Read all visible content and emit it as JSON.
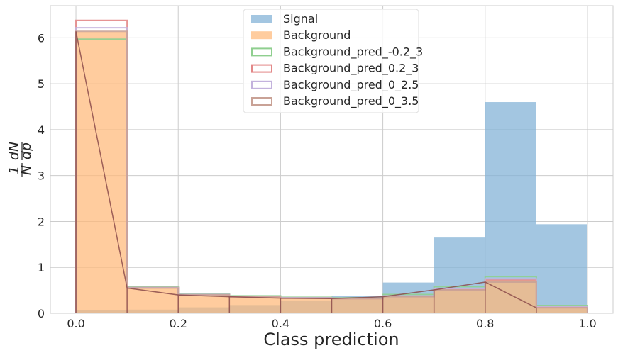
{
  "chart_data": {
    "type": "bar",
    "title": "",
    "xlabel": "Class prediction",
    "ylabel": "1 dN / N dp",
    "ylabel_parts": {
      "one": "1",
      "N": "N",
      "dN": "dN",
      "dp": "dp"
    },
    "xlim": [
      -0.05,
      1.05
    ],
    "ylim": [
      0,
      6.7
    ],
    "xticks": [
      "0.0",
      "0.2",
      "0.4",
      "0.6",
      "0.8",
      "1.0"
    ],
    "xtick_values": [
      0.0,
      0.2,
      0.4,
      0.6,
      0.8,
      1.0
    ],
    "yticks": [
      "0",
      "1",
      "2",
      "3",
      "4",
      "5",
      "6"
    ],
    "ytick_values": [
      0,
      1,
      2,
      3,
      4,
      5,
      6
    ],
    "grid": true,
    "legend_position": "top-center",
    "bin_edges": [
      0.0,
      0.1,
      0.2,
      0.3,
      0.4,
      0.5,
      0.6,
      0.7,
      0.8,
      0.9,
      1.0
    ],
    "series": [
      {
        "name": "Signal",
        "style": "filled",
        "color": "#7fb0d5",
        "values": [
          0.07,
          0.08,
          0.13,
          0.18,
          0.28,
          0.38,
          0.67,
          1.65,
          4.6,
          1.94
        ]
      },
      {
        "name": "Background",
        "style": "filled",
        "color": "#ffb978",
        "values": [
          6.13,
          0.57,
          0.42,
          0.37,
          0.34,
          0.33,
          0.39,
          0.54,
          0.73,
          0.16
        ]
      },
      {
        "name": "Background_pred_-0.2_3",
        "style": "step",
        "color": "#8fcf8f",
        "values": [
          5.97,
          0.58,
          0.42,
          0.38,
          0.35,
          0.34,
          0.41,
          0.58,
          0.8,
          0.17
        ]
      },
      {
        "name": "Background_pred_0.2_3",
        "style": "step",
        "color": "#e38888",
        "values": [
          6.38,
          0.56,
          0.41,
          0.36,
          0.33,
          0.32,
          0.37,
          0.52,
          0.73,
          0.13
        ]
      },
      {
        "name": "Background_pred_0_2.5",
        "style": "step",
        "color": "#c3b2dd",
        "values": [
          6.22,
          0.56,
          0.41,
          0.37,
          0.34,
          0.33,
          0.38,
          0.54,
          0.75,
          0.15
        ]
      },
      {
        "name": "Background_pred_0_3.5",
        "style": "step",
        "color": "#c9a296",
        "values": [
          6.14,
          0.55,
          0.4,
          0.36,
          0.33,
          0.32,
          0.36,
          0.51,
          0.68,
          0.12
        ]
      }
    ]
  }
}
